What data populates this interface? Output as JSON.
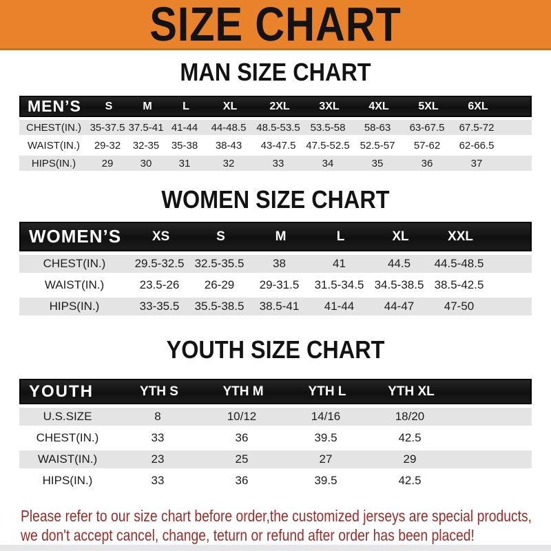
{
  "theme": {
    "banner_bg": "#E8832B",
    "header_bar_bg": "#181818",
    "row_stripe_bg": "#E4E4E4",
    "footer_text_color": "#9E2A25"
  },
  "banner": {
    "title": "SIZE CHART"
  },
  "sections": [
    {
      "heading": "MAN SIZE CHART",
      "table": {
        "header_label": "MEN’S",
        "columns": [
          "S",
          "M",
          "L",
          "XL",
          "2XL",
          "3XL",
          "4XL",
          "5XL",
          "6XL"
        ],
        "rows": [
          {
            "label": "CHEST(IN.)",
            "values": [
              "35-37.5",
              "37.5-41",
              "41-44",
              "44-48.5",
              "48.5-53.5",
              "53.5-58",
              "58-63",
              "63-67.5",
              "67.5-72"
            ]
          },
          {
            "label": "WAIST(IN.)",
            "values": [
              "29-32",
              "32-35",
              "35-38",
              "38-43",
              "43-47.5",
              "47.5-52.5",
              "52.5-57",
              "57-62",
              "62-66.5"
            ]
          },
          {
            "label": "HIPS(IN.)",
            "values": [
              "29",
              "30",
              "31",
              "32",
              "33",
              "34",
              "35",
              "36",
              "37"
            ]
          }
        ]
      }
    },
    {
      "heading": "WOMEN SIZE CHART",
      "table": {
        "header_label": "WOMEN’S",
        "columns": [
          "XS",
          "S",
          "M",
          "L",
          "XL",
          "XXL"
        ],
        "rows": [
          {
            "label": "CHEST(IN.)",
            "values": [
              "29.5-32.5",
              "32.5-35.5",
              "38",
              "41",
              "44.5",
              "44.5-48.5"
            ]
          },
          {
            "label": "WAIST(IN.)",
            "values": [
              "23.5-26",
              "26-29",
              "29-31.5",
              "31.5-34.5",
              "34.5-38.5",
              "38.5-42.5"
            ]
          },
          {
            "label": "HIPS(IN.)",
            "values": [
              "33-35.5",
              "35.5-38.5",
              "38.5-41",
              "41-44",
              "44-47",
              "47-50"
            ]
          }
        ]
      }
    },
    {
      "heading": "YOUTH SIZE CHART",
      "table": {
        "header_label": "YOUTH",
        "columns": [
          "YTH S",
          "YTH M",
          "YTH L",
          "YTH XL"
        ],
        "rows": [
          {
            "label": "U.S.SIZE",
            "values": [
              "8",
              "10/12",
              "14/16",
              "18/20"
            ]
          },
          {
            "label": "CHEST(IN.)",
            "values": [
              "33",
              "36",
              "39.5",
              "42.5"
            ]
          },
          {
            "label": "WAIST(IN.)",
            "values": [
              "23",
              "25",
              "27",
              "29"
            ]
          },
          {
            "label": "HIPS(IN.)",
            "values": [
              "33",
              "36",
              "39.5",
              "42.5"
            ]
          }
        ]
      }
    }
  ],
  "footer": {
    "line1": "Please refer to our size chart before order,the customized jerseys are special products,",
    "line2": "we don't accept cancel, change, teturn or refund after order has been placed!"
  }
}
